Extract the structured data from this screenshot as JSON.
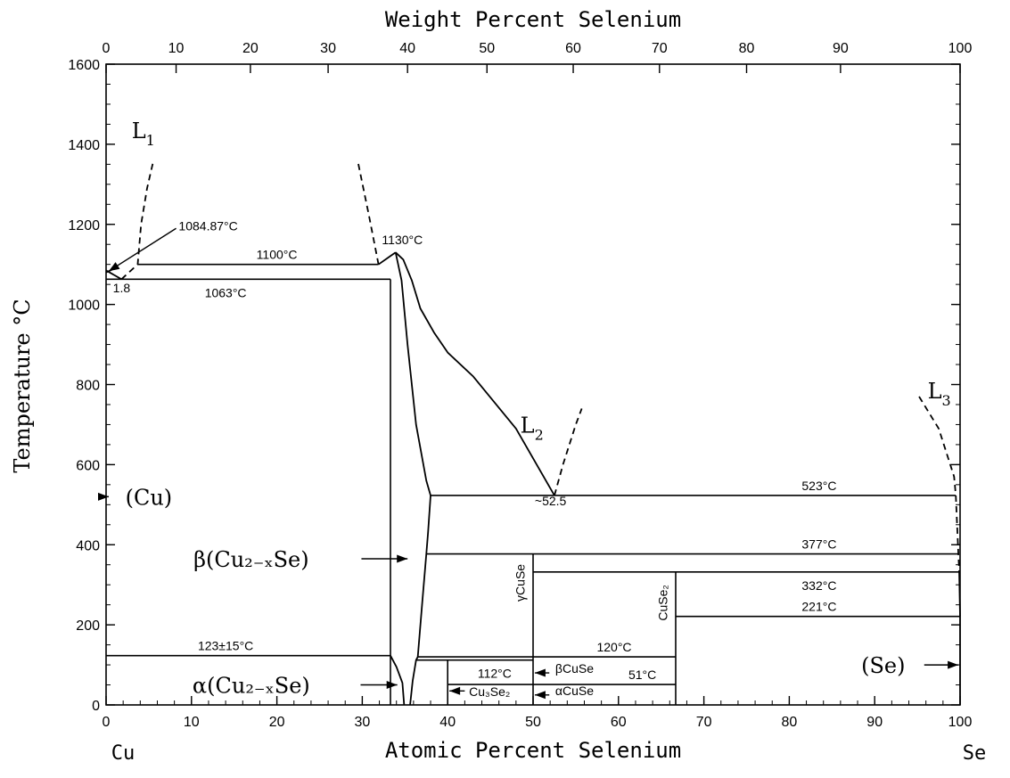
{
  "chart_data": {
    "type": "phase-diagram",
    "title": "Weight Percent Selenium",
    "xlabel": "Atomic Percent Selenium",
    "ylabel": "Temperature °C",
    "left_element": "Cu",
    "right_element": "Se",
    "xlim": [
      0,
      100
    ],
    "ylim": [
      0,
      1600
    ],
    "x_ticks": [
      0,
      10,
      20,
      30,
      40,
      50,
      60,
      70,
      80,
      90,
      100
    ],
    "y_ticks": [
      0,
      200,
      400,
      600,
      800,
      1000,
      1200,
      1400,
      1600
    ],
    "wt_ticks": [
      0,
      10,
      20,
      30,
      40,
      50,
      60,
      70,
      80,
      90,
      100
    ],
    "wt_to_at": [
      0,
      8.2,
      16.9,
      26.0,
      35.3,
      44.6,
      54.7,
      64.8,
      75.0,
      86.0,
      100
    ],
    "isotherms": [
      {
        "name": "isotherm-1100",
        "x1": 3.7,
        "x2": 31.9,
        "t": 1100,
        "label": "1100°C"
      },
      {
        "name": "isotherm-1063",
        "x1": 0,
        "x2": 33.3,
        "t": 1063,
        "label": "1063°C"
      },
      {
        "name": "isotherm-523",
        "x1": 38.0,
        "x2": 99.5,
        "t": 523,
        "label": "523°C"
      },
      {
        "name": "isotherm-377",
        "x1": 37.5,
        "x2": 99.8,
        "t": 377,
        "label": "377°C"
      },
      {
        "name": "isotherm-332",
        "x1": 50,
        "x2": 99.9,
        "t": 332,
        "label": "332°C"
      },
      {
        "name": "isotherm-221",
        "x1": 66.7,
        "x2": 100,
        "t": 221,
        "label": "221°C"
      },
      {
        "name": "isotherm-123",
        "x1": 0,
        "x2": 33.3,
        "t": 123,
        "label": "123±15°C"
      },
      {
        "name": "isotherm-120",
        "x1": 36.5,
        "x2": 66.7,
        "t": 120,
        "label": "120°C"
      },
      {
        "name": "isotherm-112",
        "x1": 36.3,
        "x2": 50,
        "t": 112,
        "label": "112°C"
      },
      {
        "name": "isotherm-51",
        "x1": 40,
        "x2": 66.7,
        "t": 51,
        "label": "51°C"
      }
    ],
    "phase_lines": [
      {
        "name": "cu2se-left-boundary",
        "x1": 33.3,
        "x2": 33.3,
        "t1": 0,
        "t2": 1063
      },
      {
        "name": "cuse-line",
        "x1": 50,
        "x2": 50,
        "t1": 0,
        "t2": 377
      },
      {
        "name": "cuse2-line",
        "x1": 66.7,
        "x2": 66.7,
        "t1": 0,
        "t2": 332
      },
      {
        "name": "cu3se2-line",
        "x1": 40,
        "x2": 40,
        "t1": 0,
        "t2": 112
      },
      {
        "name": "se-line",
        "x1": 100,
        "x2": 100,
        "t1": 0,
        "t2": 221
      }
    ],
    "curves": [
      {
        "name": "cu2se-liquidus-left",
        "dashed": false,
        "points": [
          [
            31.9,
            1100
          ],
          [
            33.3,
            1121
          ],
          [
            33.9,
            1130
          ]
        ]
      },
      {
        "name": "cu2se-liquidus-right",
        "dashed": false,
        "points": [
          [
            33.9,
            1130
          ],
          [
            34.8,
            1112
          ],
          [
            35.8,
            1060
          ],
          [
            36.8,
            990
          ],
          [
            38.4,
            930
          ],
          [
            40.0,
            880
          ],
          [
            43.0,
            820
          ],
          [
            48.0,
            690
          ],
          [
            52.5,
            523
          ]
        ]
      },
      {
        "name": "beta-solvus-right",
        "dashed": false,
        "points": [
          [
            33.9,
            1130
          ],
          [
            34.6,
            1060
          ],
          [
            35.3,
            900
          ],
          [
            36.3,
            700
          ],
          [
            37.5,
            560
          ],
          [
            38.0,
            523
          ],
          [
            37.7,
            430
          ],
          [
            37.5,
            377
          ],
          [
            37.0,
            250
          ],
          [
            36.5,
            120
          ],
          [
            36.3,
            112
          ],
          [
            35.9,
            60
          ],
          [
            35.6,
            0
          ]
        ]
      },
      {
        "name": "alpha-solvus-left",
        "dashed": false,
        "points": [
          [
            33.3,
            123
          ],
          [
            34.0,
            95
          ],
          [
            34.7,
            55
          ],
          [
            34.9,
            0
          ]
        ]
      },
      {
        "name": "cu-liquidus-left",
        "dashed": false,
        "points": [
          [
            0,
            1085
          ],
          [
            1.8,
            1063
          ]
        ]
      },
      {
        "name": "cu-liquidus-short",
        "dashed": false,
        "points": [
          [
            0,
            1080
          ],
          [
            0.7,
            1087
          ]
        ]
      },
      {
        "name": "L1-boundary",
        "dashed": true,
        "points": [
          [
            1.8,
            1063
          ],
          [
            3.7,
            1100
          ],
          [
            4.1,
            1200
          ],
          [
            4.8,
            1290
          ],
          [
            5.5,
            1355
          ]
        ]
      },
      {
        "name": "L2-left-boundary",
        "dashed": true,
        "points": [
          [
            31.9,
            1100
          ],
          [
            30.8,
            1220
          ],
          [
            29.5,
            1355
          ]
        ]
      },
      {
        "name": "L2-right-boundary",
        "dashed": true,
        "points": [
          [
            52.5,
            523
          ],
          [
            53.5,
            600
          ],
          [
            55.0,
            700
          ],
          [
            55.7,
            740
          ]
        ]
      },
      {
        "name": "L3-boundary",
        "dashed": true,
        "points": [
          [
            95.2,
            770
          ],
          [
            97.5,
            690
          ],
          [
            99.3,
            570
          ],
          [
            99.5,
            523
          ],
          [
            99.8,
            377
          ],
          [
            99.9,
            332
          ]
        ]
      },
      {
        "name": "se-liquidus-solid",
        "dashed": false,
        "points": [
          [
            99.9,
            332
          ],
          [
            100,
            221
          ]
        ]
      }
    ],
    "annotations": [
      {
        "name": "label-L1",
        "base": "L",
        "sub": "1",
        "x": 3.0,
        "t": 1415
      },
      {
        "name": "label-L2",
        "base": "L",
        "sub": "2",
        "x": 48.5,
        "t": 680
      },
      {
        "name": "label-L3",
        "base": "L",
        "sub": "3",
        "x": 96.2,
        "t": 765
      },
      {
        "name": "label-1130",
        "base": "1130°C",
        "x": 32.3,
        "t": 1150
      },
      {
        "name": "label-1084",
        "base": "1084.87°C",
        "x": 8.5,
        "t": 1185
      },
      {
        "name": "label-1.8",
        "base": "1.8",
        "x": 0.8,
        "t": 1030
      },
      {
        "name": "label-52.5",
        "base": "~52.5",
        "x": 50.2,
        "t": 498
      },
      {
        "name": "label-gamma-cuse",
        "base": "γCuSe",
        "x": 49.0,
        "t": 305,
        "rotate": true
      },
      {
        "name": "label-cuse2",
        "base": "CuSe₂",
        "x": 65.7,
        "t": 255,
        "rotate": true
      },
      {
        "name": "label-beta-cuse",
        "base": "βCuSe",
        "x": 52.6,
        "t": 80
      },
      {
        "name": "label-alpha-cuse",
        "base": "αCuSe",
        "x": 52.6,
        "t": 25
      },
      {
        "name": "label-cu3se2",
        "base": "Cu₃Se₂",
        "x": 42.5,
        "t": 22
      }
    ],
    "phase_labels": [
      {
        "name": "phase-cu",
        "text": "(Cu)",
        "x": 5.0,
        "t": 520,
        "arrow_to": [
          0,
          520
        ]
      },
      {
        "name": "phase-beta-cu2se",
        "text": "β(Cu₂₋ₓSe)",
        "x": 17.0,
        "t": 365,
        "arrow_from": [
          29.9,
          365
        ],
        "arrow_to": [
          35.3,
          365
        ]
      },
      {
        "name": "phase-alpha-cu2se",
        "text": "α(Cu₂₋ₓSe)",
        "x": 17.0,
        "t": 50,
        "arrow_from": [
          29.8,
          50
        ],
        "arrow_to": [
          34.1,
          50
        ]
      },
      {
        "name": "phase-se",
        "text": "(Se)",
        "x": 91.0,
        "t": 100,
        "arrow_from": [
          95.8,
          100
        ],
        "arrow_to": [
          99.8,
          100
        ]
      }
    ],
    "inner_arrows": [
      {
        "name": "arrow-beta-cuse",
        "from": [
          51.9,
          80
        ],
        "to": [
          50.2,
          80
        ]
      },
      {
        "name": "arrow-alpha-cuse",
        "from": [
          51.9,
          25
        ],
        "to": [
          50.2,
          25
        ]
      },
      {
        "name": "arrow-cu3se2",
        "from": [
          42.0,
          35
        ],
        "to": [
          40.2,
          35
        ]
      },
      {
        "name": "arrow-1084",
        "from": [
          8.2,
          1190
        ],
        "to": [
          0.3,
          1083
        ]
      }
    ]
  }
}
